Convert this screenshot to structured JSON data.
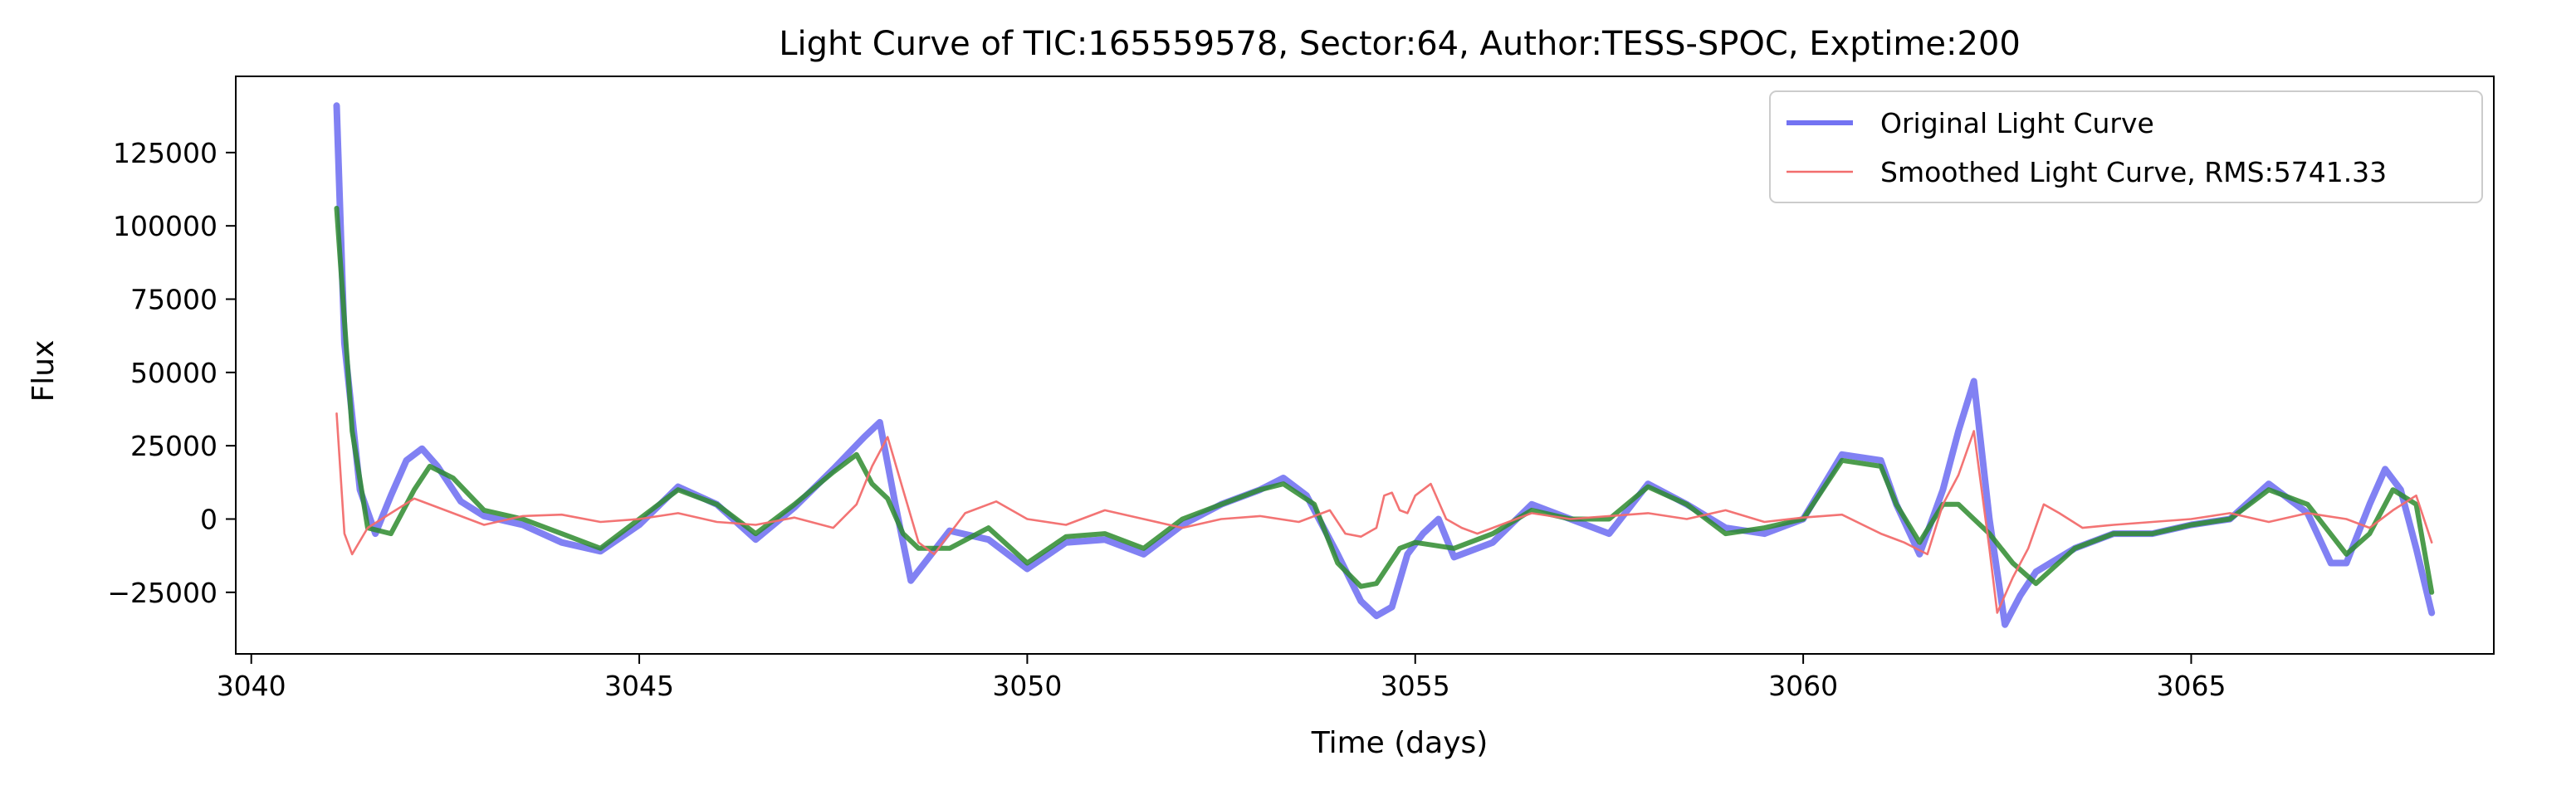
{
  "chart_data": {
    "type": "line",
    "title": "Light Curve of TIC:165559578, Sector:64, Author:TESS-SPOC, Exptime:200",
    "xlabel": "Time (days)",
    "ylabel": "Flux",
    "xlim": [
      3039.8,
      3068.9
    ],
    "ylim": [
      -46000,
      151000
    ],
    "x_ticks": [
      3040,
      3045,
      3050,
      3055,
      3060,
      3065
    ],
    "y_ticks": [
      -25000,
      0,
      25000,
      50000,
      75000,
      100000,
      125000
    ],
    "grid": false,
    "legend_position": "top-right",
    "series": [
      {
        "name": "Original Light Curve",
        "color": "#7373f2",
        "x": [
          3041.1,
          3041.2,
          3041.4,
          3041.6,
          3041.8,
          3042.0,
          3042.2,
          3042.4,
          3042.7,
          3043.0,
          3043.5,
          3044.0,
          3044.5,
          3045.0,
          3045.5,
          3046.0,
          3046.5,
          3047.0,
          3047.5,
          3047.9,
          3048.1,
          3048.3,
          3048.5,
          3049.0,
          3049.5,
          3050.0,
          3050.5,
          3051.0,
          3051.5,
          3052.0,
          3052.5,
          3053.0,
          3053.3,
          3053.6,
          3054.0,
          3054.3,
          3054.5,
          3054.7,
          3054.9,
          3055.1,
          3055.3,
          3055.5,
          3056.0,
          3056.5,
          3057.0,
          3057.5,
          3058.0,
          3058.5,
          3059.0,
          3059.5,
          3060.0,
          3060.5,
          3061.0,
          3061.2,
          3061.5,
          3061.8,
          3062.0,
          3062.2,
          3062.4,
          3062.6,
          3062.8,
          3063.0,
          3063.5,
          3064.0,
          3064.5,
          3065.0,
          3065.5,
          3066.0,
          3066.5,
          3066.8,
          3067.0,
          3067.3,
          3067.5,
          3067.7,
          3067.9,
          3068.1
        ],
        "y": [
          141000,
          60000,
          10000,
          -5000,
          8000,
          20000,
          24000,
          18000,
          6000,
          1000,
          -2000,
          -8000,
          -11000,
          -2000,
          11000,
          5000,
          -7000,
          4000,
          17000,
          28000,
          33000,
          5000,
          -21000,
          -4000,
          -7000,
          -17000,
          -8000,
          -7000,
          -12000,
          -2000,
          5000,
          10000,
          14000,
          8000,
          -12000,
          -28000,
          -33000,
          -30000,
          -12000,
          -5000,
          0,
          -13000,
          -8000,
          5000,
          0,
          -5000,
          12000,
          5000,
          -3000,
          -5000,
          0,
          22000,
          20000,
          5000,
          -12000,
          10000,
          30000,
          47000,
          0,
          -36000,
          -26000,
          -18000,
          -10000,
          -5000,
          -5000,
          -2000,
          0,
          12000,
          2000,
          -15000,
          -15000,
          5000,
          17000,
          10000,
          -10000,
          -32000
        ]
      },
      {
        "name": "Smoothed Light Curve, RMS:5741.33",
        "color": "#f26d6d",
        "x": [
          3041.1,
          3041.2,
          3041.3,
          3041.5,
          3041.8,
          3042.1,
          3042.5,
          3043.0,
          3043.5,
          3044.0,
          3044.5,
          3045.0,
          3045.5,
          3046.0,
          3046.5,
          3047.0,
          3047.5,
          3047.8,
          3048.0,
          3048.2,
          3048.4,
          3048.6,
          3048.8,
          3049.2,
          3049.6,
          3050.0,
          3050.5,
          3051.0,
          3051.5,
          3052.0,
          3052.5,
          3053.0,
          3053.5,
          3053.9,
          3054.1,
          3054.3,
          3054.5,
          3054.6,
          3054.7,
          3054.8,
          3054.9,
          3055.0,
          3055.2,
          3055.4,
          3055.6,
          3055.8,
          3056.0,
          3056.5,
          3057.0,
          3057.5,
          3058.0,
          3058.5,
          3059.0,
          3059.5,
          3060.0,
          3060.5,
          3061.0,
          3061.3,
          3061.6,
          3061.8,
          3062.0,
          3062.2,
          3062.4,
          3062.5,
          3062.7,
          3062.9,
          3063.1,
          3063.3,
          3063.6,
          3064.0,
          3064.5,
          3065.0,
          3065.5,
          3066.0,
          3066.5,
          3067.0,
          3067.3,
          3067.6,
          3067.9,
          3068.1
        ],
        "y": [
          36000,
          -5000,
          -12000,
          -3000,
          2000,
          7000,
          3000,
          -2000,
          1000,
          1500,
          -1000,
          0,
          2000,
          -1000,
          -2000,
          500,
          -3000,
          5000,
          18000,
          28000,
          10000,
          -8000,
          -12000,
          2000,
          6000,
          0,
          -2000,
          3000,
          0,
          -3000,
          0,
          1000,
          -1000,
          3000,
          -5000,
          -6000,
          -3000,
          8000,
          9000,
          3000,
          2000,
          8000,
          12000,
          0,
          -3000,
          -5000,
          -3000,
          2000,
          0,
          1000,
          2000,
          0,
          3000,
          -1000,
          500,
          1500,
          -5000,
          -8000,
          -12000,
          5000,
          15000,
          30000,
          -10000,
          -32000,
          -20000,
          -10000,
          5000,
          2000,
          -3000,
          -2000,
          -1000,
          0,
          2000,
          -1000,
          2000,
          0,
          -3000,
          3000,
          8000,
          -8000
        ]
      },
      {
        "name": "",
        "color": "#2e8b2e",
        "x": [
          3041.1,
          3041.3,
          3041.5,
          3041.8,
          3042.1,
          3042.3,
          3042.6,
          3043.0,
          3043.5,
          3044.0,
          3044.5,
          3045.0,
          3045.5,
          3046.0,
          3046.5,
          3047.0,
          3047.5,
          3047.8,
          3048.0,
          3048.2,
          3048.4,
          3048.6,
          3049.0,
          3049.5,
          3050.0,
          3050.5,
          3051.0,
          3051.5,
          3052.0,
          3052.5,
          3053.0,
          3053.3,
          3053.7,
          3054.0,
          3054.3,
          3054.5,
          3054.8,
          3055.0,
          3055.5,
          3056.0,
          3056.5,
          3057.0,
          3057.5,
          3058.0,
          3058.5,
          3059.0,
          3059.5,
          3060.0,
          3060.5,
          3061.0,
          3061.2,
          3061.5,
          3061.8,
          3062.0,
          3062.2,
          3062.4,
          3062.7,
          3063.0,
          3063.5,
          3064.0,
          3064.5,
          3065.0,
          3065.5,
          3066.0,
          3066.5,
          3067.0,
          3067.3,
          3067.6,
          3067.9,
          3068.1
        ],
        "y": [
          106000,
          30000,
          -3000,
          -5000,
          10000,
          18000,
          14000,
          3000,
          0,
          -5000,
          -10000,
          0,
          10000,
          5000,
          -5000,
          5000,
          16000,
          22000,
          12000,
          7000,
          -5000,
          -10000,
          -10000,
          -3000,
          -15000,
          -6000,
          -5000,
          -10000,
          0,
          5000,
          10000,
          12000,
          5000,
          -15000,
          -23000,
          -22000,
          -10000,
          -8000,
          -10000,
          -5000,
          3000,
          0,
          0,
          11000,
          5000,
          -5000,
          -3000,
          0,
          20000,
          18000,
          5000,
          -8000,
          5000,
          5000,
          0,
          -5000,
          -15000,
          -22000,
          -10000,
          -5000,
          -5000,
          -2000,
          0,
          10000,
          5000,
          -12000,
          -5000,
          10000,
          5000,
          -25000
        ]
      }
    ]
  }
}
